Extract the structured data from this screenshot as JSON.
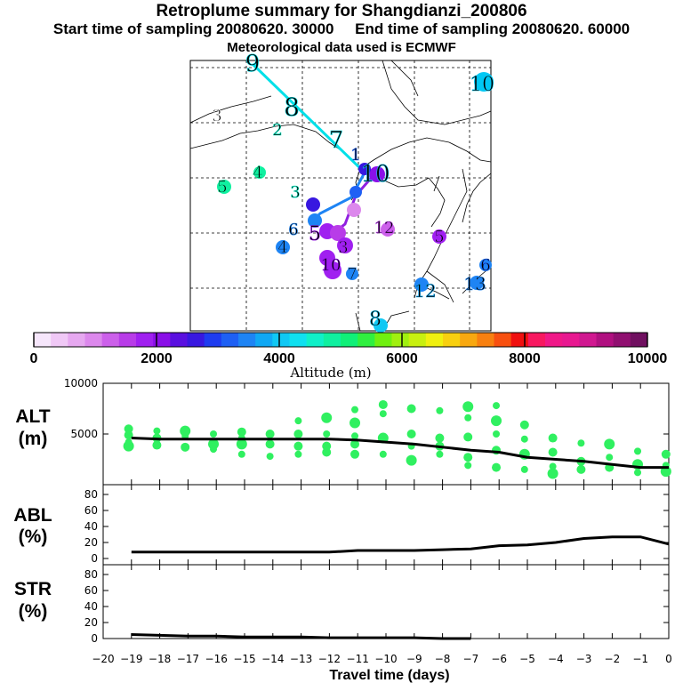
{
  "header": {
    "title": "Retroplume summary for Shangdianzi_200806",
    "start_label": "Start time of sampling 20080620. 30000",
    "end_label": "End time of sampling 20080620. 60000",
    "met_label": "Meteorological data used is ECMWF"
  },
  "colorbar": {
    "xlabel": "Altitude (m)",
    "ticks": [
      0,
      2000,
      4000,
      6000,
      8000,
      10000
    ],
    "colors": [
      "#f6e6fb",
      "#f0c8f6",
      "#e6a8f0",
      "#dc88ec",
      "#cc60ea",
      "#b83ce8",
      "#a020f0",
      "#8a10e8",
      "#5a10e0",
      "#3818e0",
      "#1e3cf0",
      "#1e60f4",
      "#1e84f4",
      "#10a8f4",
      "#10c8f4",
      "#10e0f0",
      "#10f0c8",
      "#10f0a0",
      "#10f078",
      "#30f040",
      "#70f010",
      "#a0f010",
      "#c8f010",
      "#f0f010",
      "#f8d010",
      "#f8a810",
      "#f88010",
      "#f85010",
      "#f01010",
      "#f81860",
      "#f01888",
      "#e81890",
      "#d01890",
      "#b01080",
      "#901070",
      "#701060"
    ]
  },
  "map": {
    "labels": [
      {
        "t": "9",
        "c": "#00e0e8"
      },
      {
        "t": "8",
        "c": "#00e0e8"
      },
      {
        "t": "3",
        "c": "#ffffff"
      },
      {
        "t": "2",
        "c": "#10f0c8"
      },
      {
        "t": "7",
        "c": "#00e0e8"
      },
      {
        "t": "1",
        "c": "#1e60f4"
      },
      {
        "t": "4",
        "c": "#10f0a0"
      },
      {
        "t": "5",
        "c": "#10f0a0"
      },
      {
        "t": "3",
        "c": "#10f0c8"
      },
      {
        "t": "10",
        "c": "#00c8f4"
      },
      {
        "t": "6",
        "c": "#1e84f4"
      },
      {
        "t": "4",
        "c": "#1e84f4"
      },
      {
        "t": "5",
        "c": "#a020f0"
      },
      {
        "t": "12",
        "c": "#b83ce8"
      },
      {
        "t": "5",
        "c": "#a020f0"
      },
      {
        "t": "6",
        "c": "#1e60f4"
      },
      {
        "t": "7",
        "c": "#1e84f4"
      },
      {
        "t": "13",
        "c": "#1e84f4"
      },
      {
        "t": "12",
        "c": "#10a8f4"
      },
      {
        "t": "8",
        "c": "#10c8f4"
      },
      {
        "t": "10",
        "c": "#10c8f4"
      },
      {
        "t": "10",
        "c": "#8a10e8"
      },
      {
        "t": "3",
        "c": "#a020f0"
      },
      {
        "t": "4",
        "c": "#a020f0"
      }
    ]
  },
  "chart_data": [
    {
      "type": "line",
      "panel": "ALT",
      "ylabel": "ALT\n(m)",
      "ylim": [
        0,
        10000
      ],
      "yticks": [
        5000,
        10000
      ],
      "x": [
        0,
        -1,
        -2,
        -3,
        -4,
        -5,
        -6,
        -7,
        -8,
        -9,
        -10,
        -11,
        -12,
        -13,
        -14,
        -15,
        -16,
        -17,
        -18,
        -19
      ],
      "mean": [
        1700,
        1700,
        2000,
        2300,
        2500,
        2700,
        3200,
        3400,
        3700,
        4000,
        4200,
        4400,
        4500,
        4500,
        4500,
        4500,
        4500,
        4500,
        4500,
        4600
      ],
      "scatter": [
        {
          "x": -0.1,
          "ys": [
            3000,
            1900,
            1300
          ]
        },
        {
          "x": -1.1,
          "ys": [
            3300,
            2000,
            1200
          ]
        },
        {
          "x": -2.1,
          "ys": [
            4000,
            2700,
            1700
          ]
        },
        {
          "x": -3.1,
          "ys": [
            4100,
            2300,
            1500
          ]
        },
        {
          "x": -4.1,
          "ys": [
            4600,
            3200,
            1800,
            1100
          ]
        },
        {
          "x": -5.1,
          "ys": [
            5900,
            4500,
            3000,
            1500
          ]
        },
        {
          "x": -6.1,
          "ys": [
            7800,
            6300,
            5000,
            3400,
            1700
          ]
        },
        {
          "x": -7.1,
          "ys": [
            7700,
            6600,
            4700,
            2700,
            1900
          ]
        },
        {
          "x": -8.1,
          "ys": [
            7300,
            4600,
            3800,
            3000
          ]
        },
        {
          "x": -9.1,
          "ys": [
            7500,
            5000,
            3800,
            2400
          ]
        },
        {
          "x": -10.1,
          "ys": [
            7900,
            7000,
            4600,
            3000
          ]
        },
        {
          "x": -11.1,
          "ys": [
            7400,
            6100,
            4800,
            4000,
            3000
          ]
        },
        {
          "x": -12.1,
          "ys": [
            6600,
            5000,
            3800,
            3200
          ]
        },
        {
          "x": -13.1,
          "ys": [
            6300,
            5000,
            3800,
            3000
          ]
        },
        {
          "x": -14.1,
          "ys": [
            5000,
            4000,
            2800
          ]
        },
        {
          "x": -15.1,
          "ys": [
            5200,
            4600,
            4000,
            3000
          ]
        },
        {
          "x": -16.1,
          "ys": [
            5000,
            4000,
            3500
          ]
        },
        {
          "x": -17.1,
          "ys": [
            5300,
            4800,
            3700
          ]
        },
        {
          "x": -18.1,
          "ys": [
            5300,
            4600,
            3900
          ]
        },
        {
          "x": -19.1,
          "ys": [
            5500,
            4900,
            4200,
            3800
          ]
        }
      ]
    },
    {
      "type": "line",
      "panel": "ABL",
      "ylabel": "ABL\n(%)",
      "ylim": [
        0,
        100
      ],
      "yticks": [
        0,
        20,
        40,
        60,
        80
      ],
      "x": [
        0,
        -1,
        -2,
        -3,
        -4,
        -5,
        -6,
        -7,
        -8,
        -9,
        -10,
        -11,
        -12,
        -13,
        -14,
        -15,
        -16,
        -17,
        -18,
        -19
      ],
      "values": [
        18,
        27,
        27,
        25,
        20,
        17,
        16,
        12,
        11,
        10,
        10,
        10,
        8,
        8,
        8,
        8,
        8,
        8,
        8,
        8
      ]
    },
    {
      "type": "line",
      "panel": "STR",
      "ylabel": "STR\n(%)",
      "ylim": [
        0,
        100
      ],
      "yticks": [
        0,
        20,
        40,
        60,
        80
      ],
      "x": [
        -7,
        -8,
        -9,
        -10,
        -11,
        -12,
        -13,
        -14,
        -15,
        -16,
        -17,
        -18,
        -19
      ],
      "values": [
        0,
        0,
        1,
        1,
        1,
        1,
        2,
        2,
        2,
        3,
        3,
        4,
        5
      ]
    }
  ],
  "axes": {
    "xlabel": "Travel time (days)",
    "xticks": [
      -20,
      -19,
      -18,
      -17,
      -16,
      -15,
      -14,
      -13,
      -12,
      -11,
      -10,
      -9,
      -8,
      -7,
      -6,
      -5,
      -4,
      -3,
      -2,
      -1,
      0
    ]
  }
}
